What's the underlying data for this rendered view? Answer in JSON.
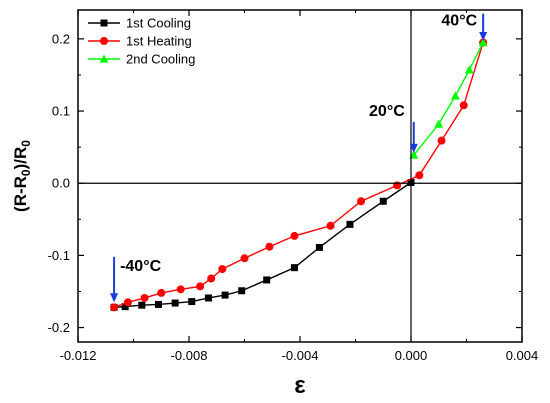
{
  "chart_data": {
    "type": "line",
    "xlabel": "ε",
    "ylabel_parts": [
      "(R-R",
      "0",
      ")/R",
      "0"
    ],
    "xlim": [
      -0.012,
      0.004
    ],
    "ylim": [
      -0.22,
      0.24
    ],
    "x_ticks": [
      -0.012,
      -0.008,
      -0.004,
      0.0,
      0.004
    ],
    "x_tick_labels": [
      "-0.012",
      "-0.008",
      "-0.004",
      "0.000",
      "0.004"
    ],
    "y_ticks": [
      -0.2,
      -0.1,
      0.0,
      0.1,
      0.2
    ],
    "y_tick_labels": [
      "-0.2",
      "-0.1",
      "0.0",
      "0.1",
      "0.2"
    ],
    "legend_position": "top-left",
    "reference_lines": {
      "x": 0.0,
      "y": 0.0
    },
    "series": [
      {
        "name": "1st Cooling",
        "color": "#000000",
        "marker": "square",
        "x": [
          -0.0107,
          -0.0103,
          -0.0097,
          -0.0091,
          -0.0085,
          -0.0079,
          -0.0073,
          -0.0067,
          -0.0061,
          -0.0052,
          -0.0042,
          -0.0033,
          -0.0022,
          -0.001,
          0.0
        ],
        "y": [
          -0.172,
          -0.171,
          -0.169,
          -0.168,
          -0.166,
          -0.164,
          -0.159,
          -0.155,
          -0.149,
          -0.134,
          -0.117,
          -0.089,
          -0.057,
          -0.025,
          0.001
        ]
      },
      {
        "name": "1st Heating",
        "color": "#ff0000",
        "marker": "circle",
        "x": [
          -0.0107,
          -0.0102,
          -0.0096,
          -0.009,
          -0.0083,
          -0.0076,
          -0.0072,
          -0.0068,
          -0.006,
          -0.0051,
          -0.0042,
          -0.0029,
          -0.0018,
          -0.0005,
          0.0003,
          0.0011,
          0.0019,
          0.0026
        ],
        "y": [
          -0.172,
          -0.165,
          -0.159,
          -0.152,
          -0.147,
          -0.143,
          -0.132,
          -0.119,
          -0.104,
          -0.088,
          -0.073,
          -0.059,
          -0.025,
          -0.003,
          0.011,
          0.059,
          0.108,
          0.195
        ]
      },
      {
        "name": "2nd Cooling",
        "color": "#00ff00",
        "marker": "triangle",
        "x": [
          0.0001,
          0.001,
          0.0016,
          0.0021,
          0.0026
        ],
        "y": [
          0.039,
          0.082,
          0.121,
          0.157,
          0.195
        ]
      }
    ],
    "annotations": [
      {
        "text": "40°C",
        "arrow_x": 0.0026,
        "arrow_y_from": 0.235,
        "arrow_y_to": 0.197
      },
      {
        "text": "20°C",
        "arrow_x": 0.0001,
        "arrow_y_from": 0.085,
        "arrow_y_to": 0.042
      },
      {
        "text": "-40°C",
        "arrow_x": -0.0107,
        "arrow_y_from": -0.102,
        "arrow_y_to": -0.165
      }
    ],
    "arrow_color": "#1a3cdc"
  }
}
